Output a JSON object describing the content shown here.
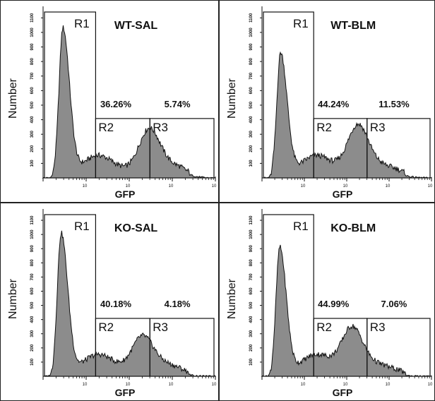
{
  "chart_data": [
    {
      "type": "area",
      "title": "WT-SAL",
      "xlabel": "GFP",
      "ylabel": "Number",
      "y_ticks": [
        "100",
        "200",
        "300",
        "400",
        "500",
        "600",
        "700",
        "800",
        "900",
        "1000",
        "1100"
      ],
      "x_ticks": [
        "10",
        "10",
        "10",
        "10"
      ],
      "gates": [
        {
          "name": "R1"
        },
        {
          "name": "R2",
          "percent": "36.26%"
        },
        {
          "name": "R3",
          "percent": "5.74%"
        }
      ],
      "peak_values": [
        1000,
        0,
        300
      ],
      "colors": {
        "fill": "#8c8c8c",
        "stroke": "#111111"
      }
    },
    {
      "type": "area",
      "title": "WT-BLM",
      "xlabel": "GFP",
      "ylabel": "Number",
      "y_ticks": [
        "100",
        "200",
        "300",
        "400",
        "500",
        "600",
        "700",
        "800",
        "900",
        "1000",
        "1100"
      ],
      "x_ticks": [
        "10",
        "10",
        "10",
        "10"
      ],
      "gates": [
        {
          "name": "R1"
        },
        {
          "name": "R2",
          "percent": "44.24%"
        },
        {
          "name": "R3",
          "percent": "11.53%"
        }
      ],
      "peak_values": [
        830,
        0,
        300
      ],
      "colors": {
        "fill": "#8c8c8c",
        "stroke": "#111111"
      }
    },
    {
      "type": "area",
      "title": "KO-SAL",
      "xlabel": "GFP",
      "ylabel": "Number",
      "y_ticks": [
        "100",
        "200",
        "300",
        "400",
        "500",
        "600",
        "700",
        "800",
        "900",
        "1000",
        "1100"
      ],
      "x_ticks": [
        "10",
        "10",
        "10",
        "10"
      ],
      "gates": [
        {
          "name": "R1"
        },
        {
          "name": "R2",
          "percent": "40.18%"
        },
        {
          "name": "R3",
          "percent": "4.18%"
        }
      ],
      "peak_values": [
        980,
        0,
        260
      ],
      "colors": {
        "fill": "#8c8c8c",
        "stroke": "#111111"
      }
    },
    {
      "type": "area",
      "title": "KO-BLM",
      "xlabel": "GFP",
      "ylabel": "Number",
      "y_ticks": [
        "100",
        "200",
        "300",
        "400",
        "500",
        "600",
        "700",
        "800",
        "900",
        "1000",
        "1100"
      ],
      "x_ticks": [
        "10",
        "10",
        "10",
        "10"
      ],
      "gates": [
        {
          "name": "R1"
        },
        {
          "name": "R2",
          "percent": "44.99%"
        },
        {
          "name": "R3",
          "percent": "7.06%"
        }
      ],
      "peak_values": [
        880,
        0,
        290
      ],
      "colors": {
        "fill": "#8c8c8c",
        "stroke": "#111111"
      }
    }
  ]
}
